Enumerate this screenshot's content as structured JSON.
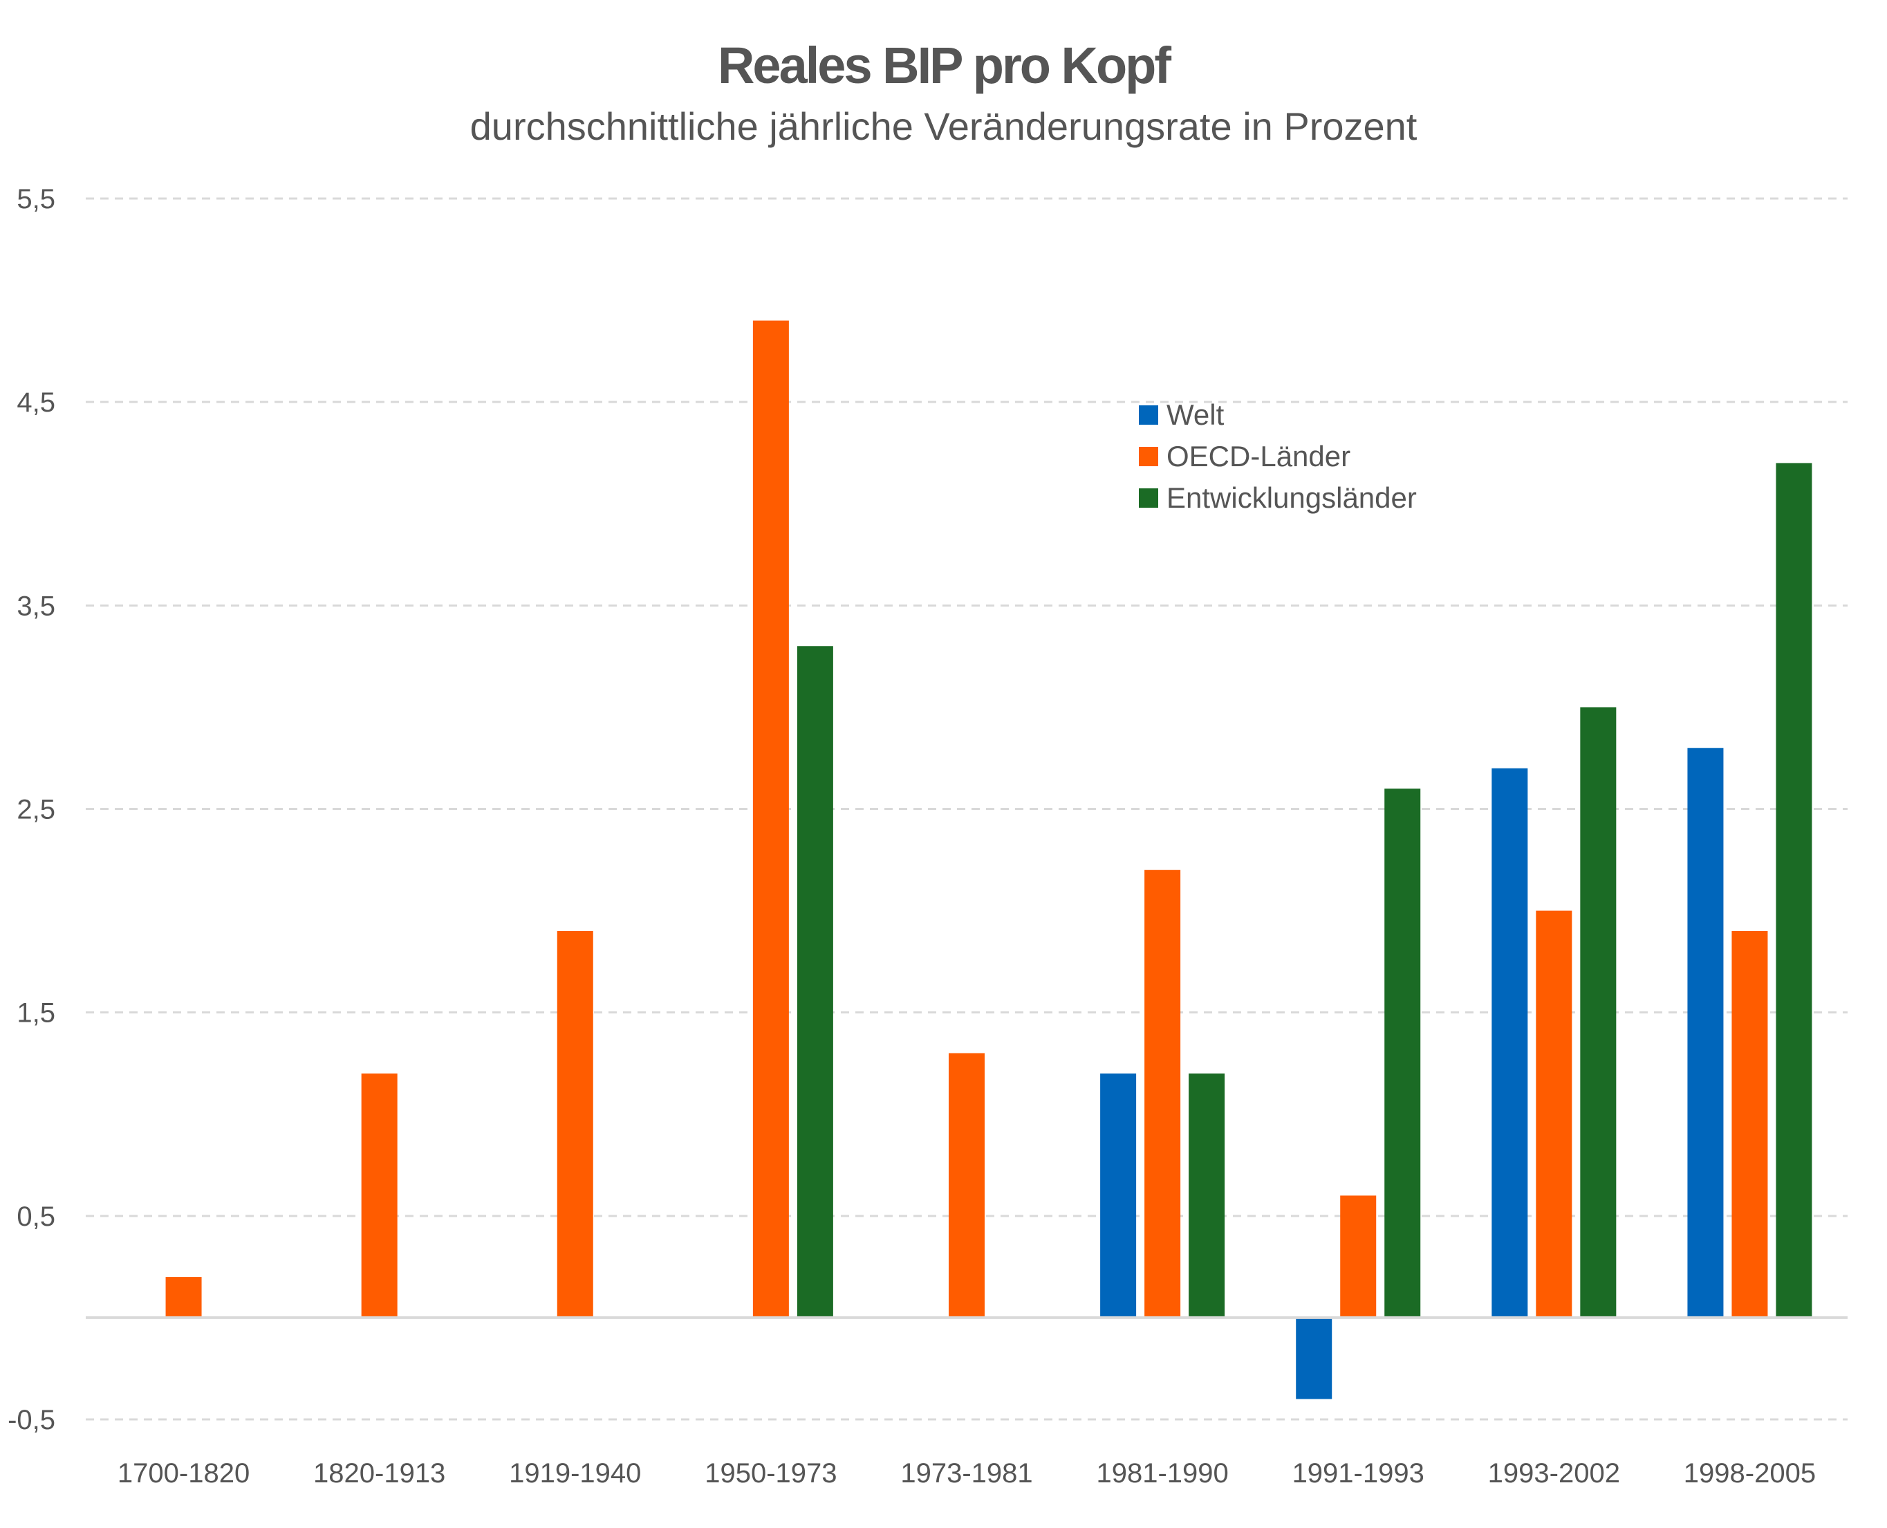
{
  "chart_data": {
    "type": "bar",
    "title": "Reales BIP pro Kopf",
    "subtitle": "durchschnittliche jährliche Veränderungsrate in Prozent",
    "xlabel": "",
    "ylabel": "",
    "categories": [
      "1700-1820",
      "1820-1913",
      "1919-1940",
      "1950-1973",
      "1973-1981",
      "1981-1990",
      "1991-1993",
      "1993-2002",
      "1998-2005"
    ],
    "series": [
      {
        "name": "Welt",
        "color": "#0066BB",
        "values": [
          null,
          null,
          null,
          null,
          null,
          1.2,
          -0.4,
          2.7,
          2.8
        ]
      },
      {
        "name": "OECD-Länder",
        "color": "#FF5C00",
        "values": [
          0.2,
          1.2,
          1.9,
          4.9,
          1.3,
          2.2,
          0.6,
          2.0,
          1.9
        ]
      },
      {
        "name": "Entwicklungsländer",
        "color": "#1B6B25",
        "values": [
          null,
          null,
          null,
          3.3,
          null,
          1.2,
          2.6,
          3.0,
          4.2
        ]
      }
    ],
    "ylim": [
      -0.5,
      5.5
    ],
    "yticks": [
      -0.5,
      0.5,
      1.5,
      2.5,
      3.5,
      4.5,
      5.5
    ],
    "ytick_labels": [
      "-0,5",
      "0,5",
      "1,5",
      "2,5",
      "3,5",
      "4,5",
      "5,5"
    ],
    "grid": true,
    "legend_position": "top-right-center"
  }
}
